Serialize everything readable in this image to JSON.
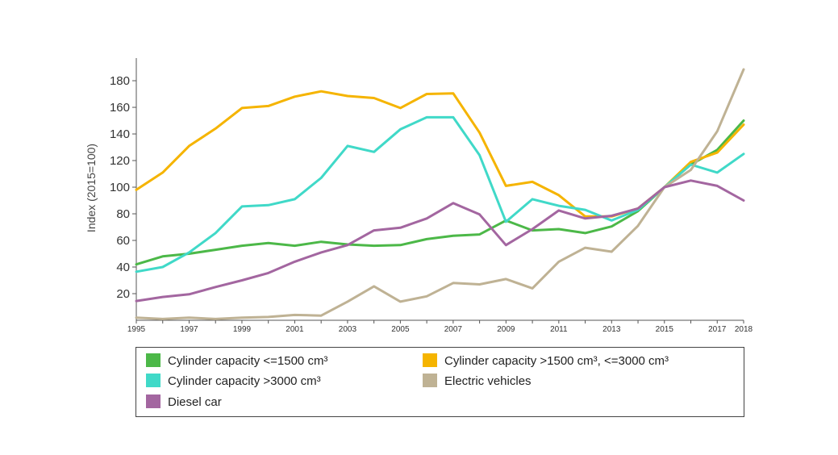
{
  "chart_data": {
    "type": "line",
    "title": "",
    "xlabel": "",
    "ylabel": "Index (2015=100)",
    "x": [
      1995,
      1996,
      1997,
      1998,
      1999,
      2000,
      2001,
      2002,
      2003,
      2004,
      2005,
      2006,
      2007,
      2008,
      2009,
      2010,
      2011,
      2012,
      2013,
      2014,
      2015,
      2016,
      2017,
      2018
    ],
    "x_tick_labels": [
      "1995",
      "1997",
      "1999",
      "2001",
      "2003",
      "2005",
      "2007",
      "2009",
      "2011",
      "2013",
      "2015",
      "2017",
      "2018"
    ],
    "y_ticks": [
      20,
      40,
      60,
      80,
      100,
      120,
      140,
      160,
      180
    ],
    "ylim": [
      0,
      197
    ],
    "xlim": [
      1995,
      2018
    ],
    "grid": false,
    "legend_position": "bottom",
    "series": [
      {
        "name": "Cylinder capacity <=1500 cm³",
        "color": "#4cb848",
        "values": [
          42,
          48,
          50,
          53,
          56,
          58,
          56,
          59,
          57,
          56,
          56.5,
          61,
          63.5,
          64.5,
          75,
          67.5,
          68.5,
          65.5,
          70.5,
          82,
          100,
          117,
          128,
          150
        ]
      },
      {
        "name": "Cylinder capacity >1500 cm³, <=3000 cm³",
        "color": "#f5b400",
        "values": [
          98,
          111,
          131,
          144,
          159.5,
          161,
          168,
          172,
          168.5,
          167,
          159.5,
          170,
          170.5,
          141,
          101,
          104,
          94,
          78,
          78,
          84,
          100,
          119,
          126,
          147
        ]
      },
      {
        "name": "Cylinder capacity >3000 cm³",
        "color": "#40d9c8",
        "values": [
          36.5,
          40,
          51,
          65.5,
          85.5,
          86.5,
          91,
          107,
          131,
          126.5,
          143.5,
          152.5,
          152.5,
          124,
          74,
          91,
          86,
          83,
          75,
          83,
          100,
          117,
          111,
          125
        ]
      },
      {
        "name": "Electric vehicles",
        "color": "#bfb294",
        "values": [
          2,
          1,
          2,
          1,
          2,
          2.5,
          4,
          3.5,
          14,
          25.5,
          14,
          18,
          28,
          27,
          31,
          24,
          44,
          54.5,
          51.5,
          71,
          100,
          113,
          142,
          188.5
        ]
      },
      {
        "name": "Diesel car",
        "color": "#a366a0",
        "values": [
          14.5,
          17.5,
          19.5,
          25,
          30,
          35.5,
          44,
          51,
          56.5,
          67.5,
          69.5,
          76.5,
          88,
          79.5,
          56.5,
          68.5,
          82.5,
          76.5,
          78.5,
          84,
          100,
          105,
          101,
          90
        ]
      }
    ],
    "legend": {
      "rows": [
        [
          "Cylinder capacity <=1500 cm³",
          "Cylinder capacity >1500 cm³, <=3000 cm³"
        ],
        [
          "Cylinder capacity >3000 cm³",
          "Electric vehicles"
        ],
        [
          "Diesel car"
        ]
      ]
    }
  }
}
